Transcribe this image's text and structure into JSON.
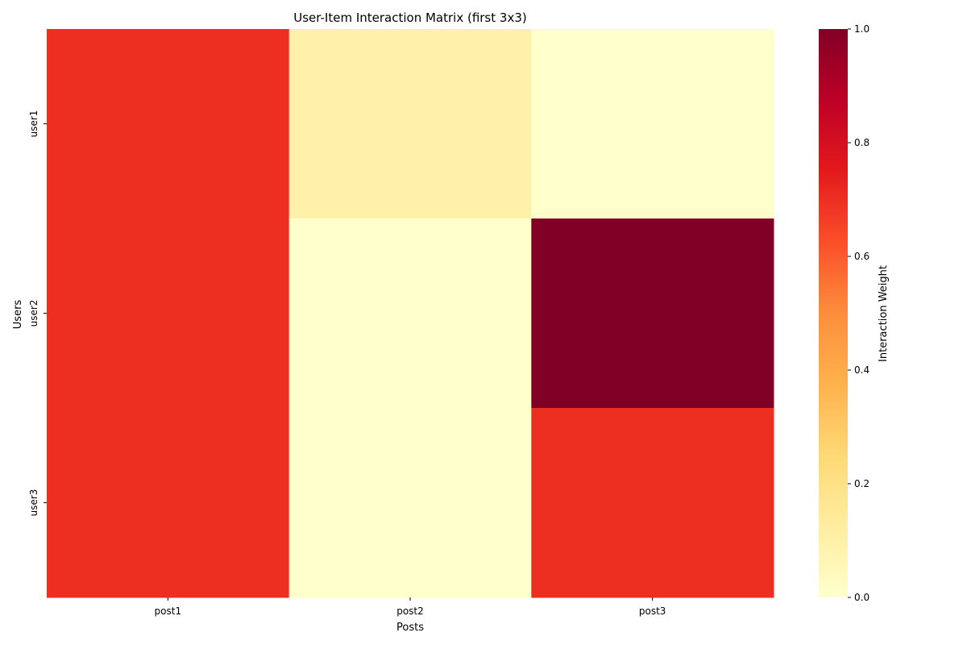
{
  "chart_data": {
    "type": "heatmap",
    "title": "User-Item Interaction Matrix (first 3x3)",
    "xlabel": "Posts",
    "ylabel": "Users",
    "x_categories": [
      "post1",
      "post2",
      "post3"
    ],
    "y_categories": [
      "user1",
      "user2",
      "user3"
    ],
    "values": [
      [
        0.7,
        0.1,
        0.0
      ],
      [
        0.7,
        0.0,
        1.0
      ],
      [
        0.7,
        0.0,
        0.7
      ]
    ],
    "colorbar": {
      "label": "Interaction Weight",
      "range": [
        0.0,
        1.0
      ],
      "ticks": [
        "0.0",
        "0.2",
        "0.4",
        "0.6",
        "0.8",
        "1.0"
      ],
      "colormap": "YlOrRd",
      "stops": [
        "#ffffcc",
        "#ffeda0",
        "#fed976",
        "#feb24c",
        "#fd8d3c",
        "#fc4e2a",
        "#e31a1c",
        "#bd0026",
        "#800026"
      ]
    },
    "grid": false
  }
}
